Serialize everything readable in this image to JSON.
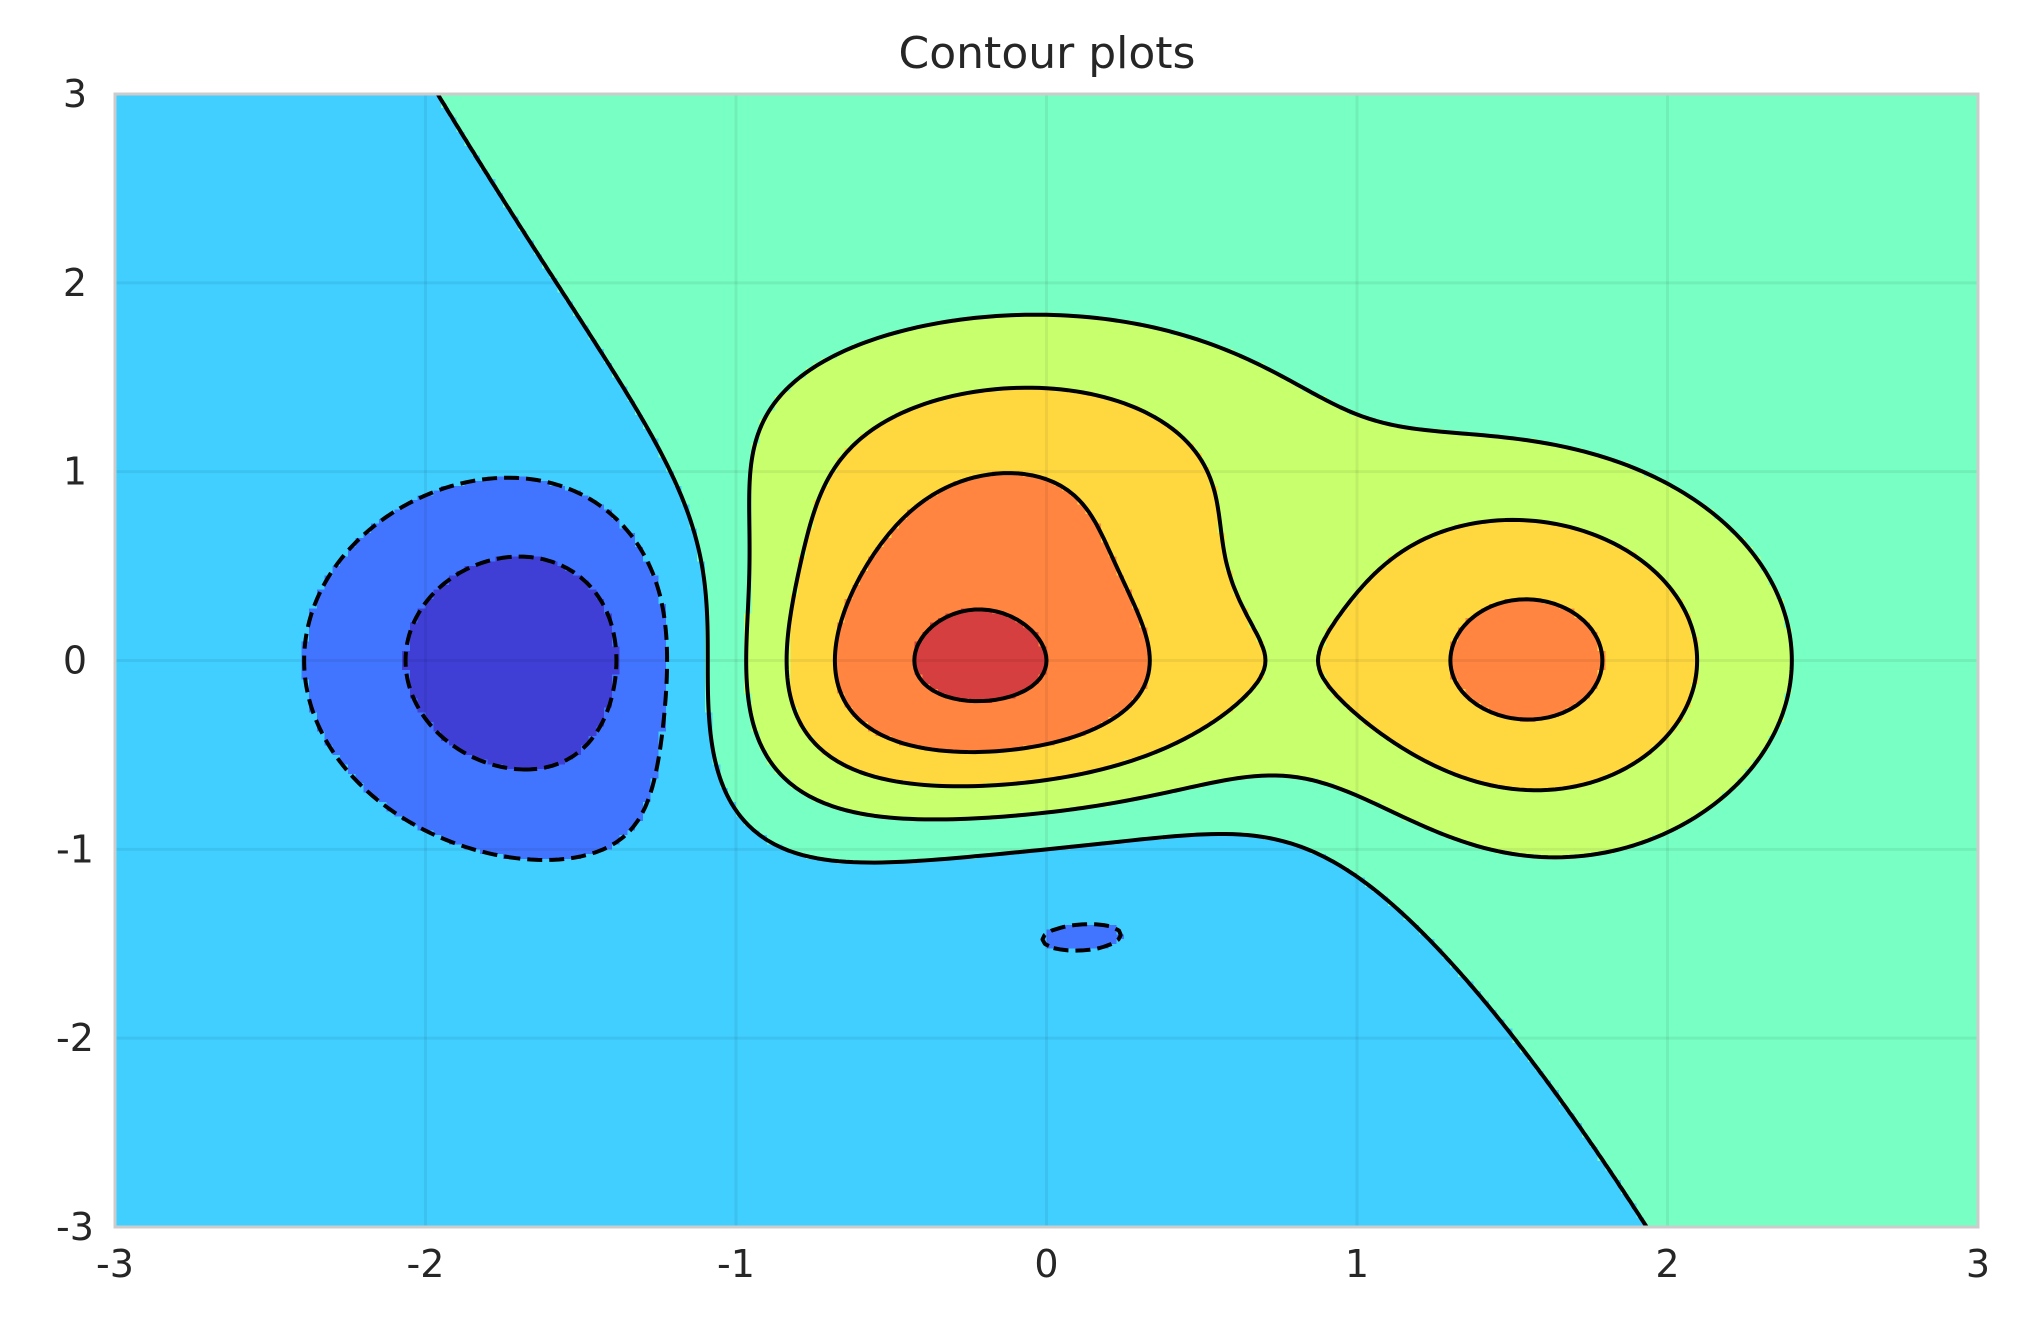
{
  "chart_data": {
    "type": "contour",
    "title": "Contour plots",
    "xlabel": "",
    "ylabel": "",
    "xlim": [
      -3,
      3
    ],
    "ylim": [
      -3,
      3
    ],
    "xticks": [
      -3,
      -2,
      -1,
      0,
      1,
      2,
      3
    ],
    "yticks": [
      -3,
      -2,
      -1,
      0,
      1,
      2,
      3
    ],
    "grid": true,
    "colormap": "jet",
    "level_colors": [
      "#3f3fd6",
      "#4275ff",
      "#40cfff",
      "#78ffc3",
      "#c8ff6d",
      "#ffd83f",
      "#ff8540",
      "#d63f3f"
    ],
    "negative_linestyle": "dashed",
    "positive_linestyle": "solid",
    "line_color": "#000000"
  }
}
